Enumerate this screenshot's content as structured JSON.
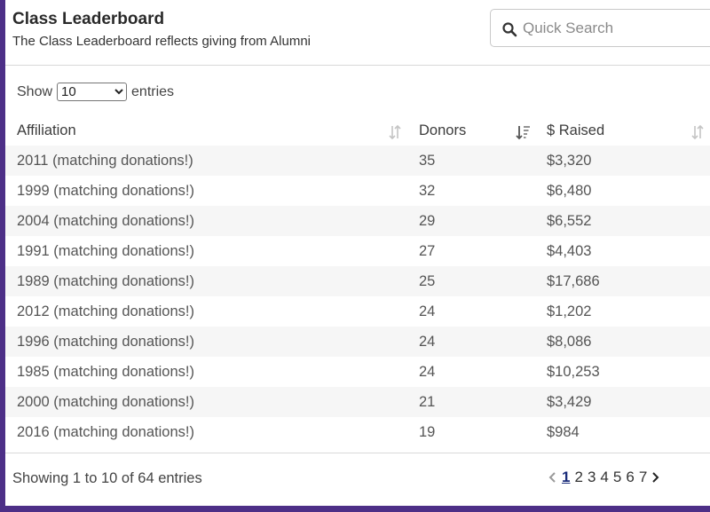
{
  "header": {
    "title": "Class Leaderboard",
    "subtitle": "The Class Leaderboard reflects giving from Alumni"
  },
  "search": {
    "placeholder": "Quick Search",
    "icon": "search-icon"
  },
  "length": {
    "show_label": "Show",
    "selected": "10",
    "entries_label": "entries"
  },
  "table": {
    "columns": [
      "Affiliation",
      "Donors",
      "$ Raised"
    ],
    "rows": [
      {
        "affiliation": "2011 (matching donations!)",
        "donors": "35",
        "raised": "$3,320"
      },
      {
        "affiliation": "1999 (matching donations!)",
        "donors": "32",
        "raised": "$6,480"
      },
      {
        "affiliation": "2004 (matching donations!)",
        "donors": "29",
        "raised": "$6,552"
      },
      {
        "affiliation": "1991 (matching donations!)",
        "donors": "27",
        "raised": "$4,403"
      },
      {
        "affiliation": "1989 (matching donations!)",
        "donors": "25",
        "raised": "$17,686"
      },
      {
        "affiliation": "2012 (matching donations!)",
        "donors": "24",
        "raised": "$1,202"
      },
      {
        "affiliation": "1996 (matching donations!)",
        "donors": "24",
        "raised": "$8,086"
      },
      {
        "affiliation": "1985 (matching donations!)",
        "donors": "24",
        "raised": "$10,253"
      },
      {
        "affiliation": "2000 (matching donations!)",
        "donors": "21",
        "raised": "$3,429"
      },
      {
        "affiliation": "2016 (matching donations!)",
        "donors": "19",
        "raised": "$984"
      }
    ]
  },
  "footer": {
    "info": "Showing 1 to 10 of 64 entries",
    "pages": [
      "1",
      "2",
      "3",
      "4",
      "5",
      "6",
      "7"
    ],
    "current_page": "1"
  },
  "colors": {
    "frame": "#4d2f87",
    "link": "#1f5f73",
    "current_page": "#1a2c7a",
    "stripe": "#f6f6f6"
  }
}
